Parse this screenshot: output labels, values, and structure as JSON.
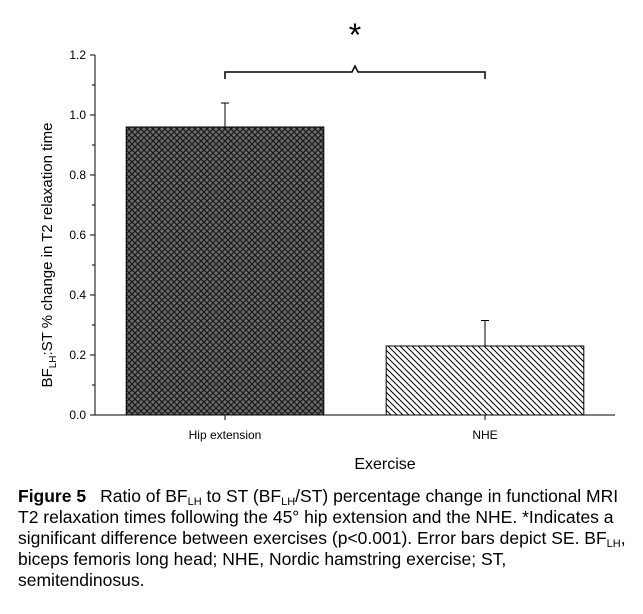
{
  "chart_data": {
    "type": "bar",
    "categories": [
      "Hip extension",
      "NHE"
    ],
    "values": [
      0.96,
      0.23
    ],
    "errors": [
      0.08,
      0.085
    ],
    "ylim": [
      0.0,
      1.2
    ],
    "yticks": [
      "0.0",
      "0.2",
      "0.4",
      "0.6",
      "0.8",
      "1.0",
      "1.2"
    ],
    "xlabel": "Exercise",
    "ylabel_main": "BF",
    "ylabel_sub": "LH",
    "ylabel_rest": ":ST % change in T2 relaxation time",
    "significance_marker": "*",
    "bar_patterns": [
      "crosshatch",
      "diagonal"
    ],
    "grid": false
  },
  "caption": {
    "label": "Figure 5",
    "t1": "Ratio of BF",
    "s1": "LH",
    "t2": " to ST (BF",
    "s2": "LH",
    "t3": "/ST) percentage change in functional MRI T2 relaxation times following the 45° hip extension and the NHE. *Indicates a significant difference between exercises (p<0.001). Error bars depict SE. BF",
    "s3": "LH",
    "t4": ", biceps femoris long head; NHE, Nordic hamstring exercise; ST, semitendinosus."
  }
}
